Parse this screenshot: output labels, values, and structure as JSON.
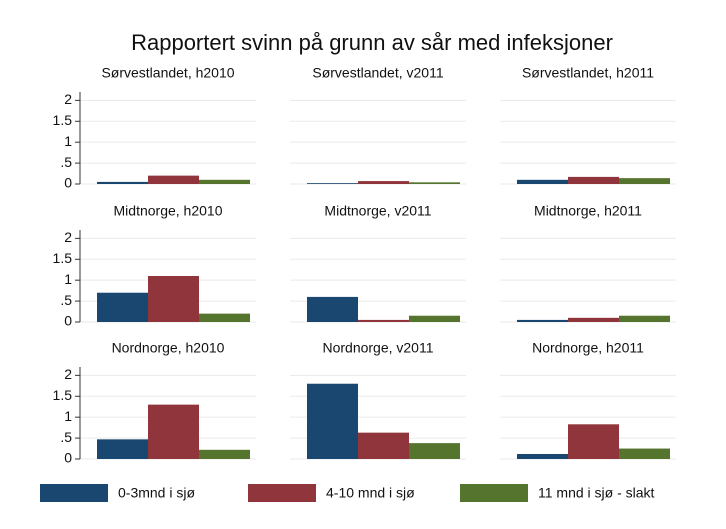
{
  "chart_data": {
    "type": "bar",
    "title": "Rapportert svinn på grunn av sår med infeksjoner",
    "categories": [
      "Sørvestlandet, h2010",
      "Sørvestlandet, v2011",
      "Sørvestlandet, h2011",
      "Midtnorge, h2010",
      "Midtnorge, v2011",
      "Midtnorge, h2011",
      "Nordnorge, h2010",
      "Nordnorge, v2011",
      "Nordnorge, h2011"
    ],
    "series": [
      {
        "name": "0-3mnd i sjø",
        "color": "#1a476f",
        "values": [
          0.05,
          0.02,
          0.1,
          0.7,
          0.6,
          0.05,
          0.47,
          1.8,
          0.12
        ]
      },
      {
        "name": "4-10 mnd i sjø",
        "color": "#90353b",
        "values": [
          0.2,
          0.07,
          0.17,
          1.1,
          0.05,
          0.1,
          1.3,
          0.63,
          0.83
        ]
      },
      {
        "name": "11 mnd i sjø - slakt",
        "color": "#55752f",
        "values": [
          0.1,
          0.04,
          0.14,
          0.2,
          0.15,
          0.15,
          0.22,
          0.38,
          0.25
        ]
      }
    ],
    "ylim": [
      0,
      2.2
    ],
    "yticks": [
      0,
      {
        "value": 0.5,
        "label": ".5"
      },
      1,
      1.5,
      2
    ],
    "grid": true
  }
}
